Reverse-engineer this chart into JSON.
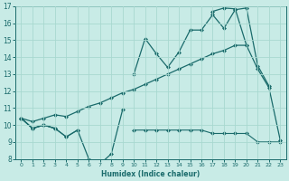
{
  "x": [
    0,
    1,
    2,
    3,
    4,
    5,
    6,
    7,
    8,
    9,
    10,
    11,
    12,
    13,
    14,
    15,
    16,
    17,
    18,
    19,
    20,
    21,
    22,
    23
  ],
  "line_zigzag": [
    10.4,
    9.8,
    10.0,
    9.8,
    9.3,
    9.7,
    8.0,
    7.7,
    8.3,
    10.9,
    null,
    null,
    null,
    null,
    null,
    null,
    null,
    null,
    null,
    null,
    null,
    null,
    null,
    null
  ],
  "line_flat": [
    10.4,
    9.8,
    10.0,
    9.8,
    9.3,
    9.7,
    null,
    null,
    null,
    null,
    9.7,
    9.7,
    9.7,
    9.7,
    9.7,
    9.7,
    9.7,
    9.5,
    9.5,
    9.5,
    9.5,
    9.0,
    9.0,
    9.0
  ],
  "line_diagonal": [
    10.4,
    10.2,
    10.4,
    10.6,
    10.5,
    10.8,
    11.1,
    11.3,
    11.6,
    11.9,
    12.1,
    12.4,
    12.7,
    13.0,
    13.3,
    13.6,
    13.9,
    14.2,
    14.4,
    14.7,
    14.7,
    null,
    null,
    null
  ],
  "line_upper": [
    10.4,
    9.8,
    10.0,
    9.8,
    null,
    null,
    null,
    null,
    null,
    null,
    13.0,
    15.1,
    14.2,
    13.4,
    14.3,
    15.6,
    15.6,
    16.5,
    15.7,
    16.8,
    16.9,
    13.5,
    12.3,
    null
  ],
  "line_upper2": [
    null,
    null,
    null,
    null,
    null,
    null,
    null,
    null,
    null,
    null,
    null,
    null,
    null,
    null,
    null,
    null,
    null,
    16.7,
    16.9,
    16.85,
    14.7,
    13.3,
    12.2,
    9.1
  ],
  "xlabel": "Humidex (Indice chaleur)",
  "xlim": [
    -0.5,
    23.5
  ],
  "ylim": [
    8,
    17
  ],
  "bg_color": "#c8ebe6",
  "grid_color": "#a8d8d0",
  "line_color": "#1a6b6b",
  "marker_size": 2.5
}
